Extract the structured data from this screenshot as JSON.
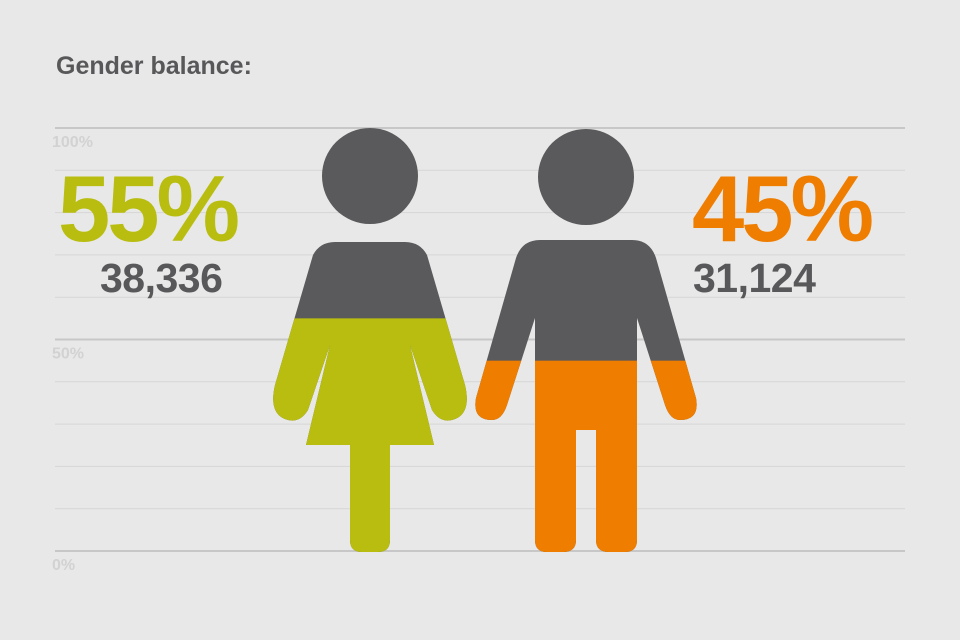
{
  "title": "Gender balance:",
  "colors": {
    "background": "#e8e8e8",
    "female": "#b8bd0f",
    "male": "#ee7d00",
    "figure_top": "#5a595b",
    "text_dark": "#58585a",
    "gridline": "#d6d6d6",
    "major_gridline": "#c7c7c7",
    "tick_text": "#d2d2d2"
  },
  "chart_data": {
    "type": "bar",
    "title": "Gender balance:",
    "categories": [
      "Female",
      "Male"
    ],
    "values": [
      55,
      45
    ],
    "counts": [
      "38,336",
      "31,124"
    ],
    "value_labels": [
      "55%",
      "45%"
    ],
    "ylim": [
      0,
      100
    ],
    "yticks": [
      {
        "value": 100,
        "label": "100%"
      },
      {
        "value": 50,
        "label": "50%"
      },
      {
        "value": 0,
        "label": "0%"
      }
    ],
    "grid": true,
    "icons": [
      "female-figure-icon",
      "male-figure-icon"
    ]
  }
}
